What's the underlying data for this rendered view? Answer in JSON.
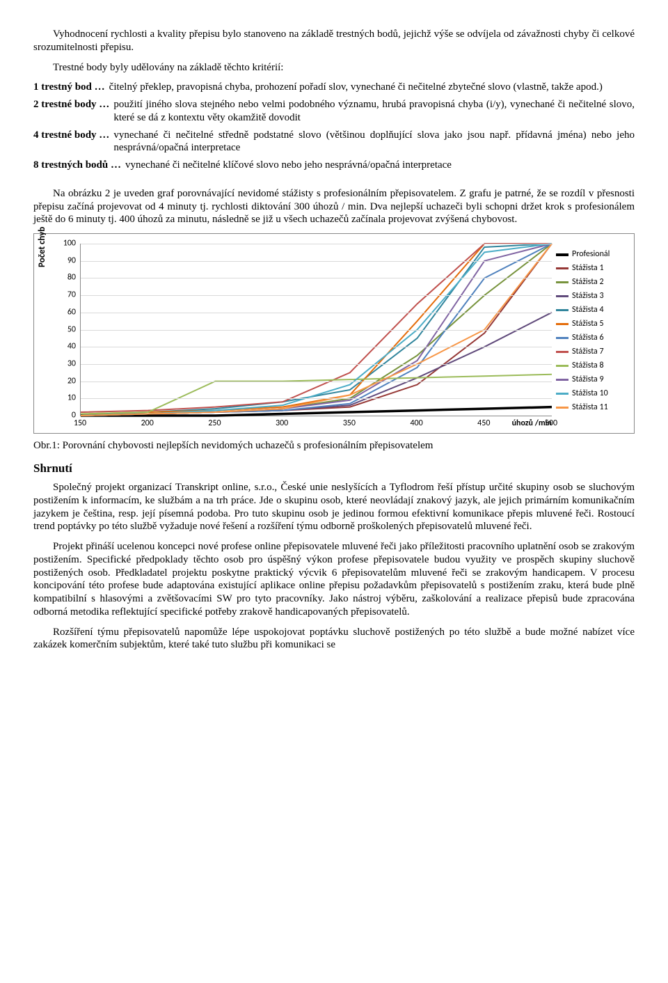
{
  "para1": "Vyhodnocení rychlosti a kvality přepisu bylo stanoveno na základě trestných bodů, jejichž výše se odvíjela od závažnosti chyby či celkové srozumitelnosti přepisu.",
  "para2": "Trestné body byly udělovány na základě těchto kritérií:",
  "criteria": [
    {
      "label": "1 trestný bod …",
      "text": "čitelný překlep, pravopisná chyba, prohození pořadí slov, vynechané či nečitelné zbytečné slovo (vlastně, takže apod.)"
    },
    {
      "label": "2 trestné body …",
      "text": "použití jiného slova stejného nebo velmi podobného významu, hrubá pravopisná chyba (i/y), vynechané či nečitelné slovo, které se dá z kontextu věty okamžitě dovodit"
    },
    {
      "label": "4 trestné body …",
      "text": "vynechané či nečitelné středně podstatné slovo (většinou doplňující slova jako jsou např. přídavná jména) nebo jeho nesprávná/opačná interpretace"
    },
    {
      "label": "8 trestných bodů …",
      "text": "vynechané či nečitelné klíčové slovo nebo jeho nesprávná/opačná interpretace"
    }
  ],
  "para3": "Na obrázku 2 je uveden graf porovnávající nevidomé stážisty s profesionálním přepisovatelem. Z grafu je patrné, že se rozdíl v přesnosti přepisu začíná projevovat od 4 minuty tj. rychlosti diktování 300 úhozů / min. Dva nejlepší uchazeči byli schopni držet krok s profesionálem ještě do 6 minuty tj. 400 úhozů za minutu, následně se již u všech uchazečů začínala projevovat zvýšená chybovost.",
  "chart": {
    "ylabel": "Počet chyb",
    "xlabel_extra": "úhozů /min",
    "ylim": [
      0,
      100
    ],
    "ytick_step": 10,
    "xticks": [
      150,
      200,
      250,
      300,
      350,
      400,
      450,
      500
    ],
    "grid_color": "#d9d9d9",
    "series": [
      {
        "name": "Profesionál",
        "color": "#000000",
        "width": 3.5,
        "data": [
          0,
          0,
          0,
          1,
          2,
          3,
          4,
          5
        ]
      },
      {
        "name": "Stážista 1",
        "color": "#953735",
        "width": 2,
        "data": [
          0,
          1,
          2,
          3,
          5,
          18,
          48,
          100
        ]
      },
      {
        "name": "Stážista 2",
        "color": "#77933c",
        "width": 2,
        "data": [
          0,
          1,
          2,
          4,
          10,
          35,
          70,
          100
        ]
      },
      {
        "name": "Stážista 3",
        "color": "#604a7b",
        "width": 2,
        "data": [
          0,
          1,
          2,
          3,
          6,
          22,
          40,
          60
        ]
      },
      {
        "name": "Stážista 4",
        "color": "#31859c",
        "width": 2,
        "data": [
          0,
          2,
          4,
          8,
          15,
          45,
          98,
          100
        ]
      },
      {
        "name": "Stážista 5",
        "color": "#e46c0a",
        "width": 2,
        "data": [
          1,
          2,
          3,
          5,
          12,
          55,
          100,
          100
        ]
      },
      {
        "name": "Stážista 6",
        "color": "#4f81bd",
        "width": 2,
        "data": [
          0,
          1,
          2,
          3,
          7,
          28,
          80,
          100
        ]
      },
      {
        "name": "Stážista 7",
        "color": "#c0504d",
        "width": 2,
        "data": [
          2,
          3,
          5,
          8,
          25,
          65,
          100,
          100
        ]
      },
      {
        "name": "Stážista 8",
        "color": "#9bbb59",
        "width": 2,
        "data": [
          1,
          2,
          20,
          20,
          21,
          22,
          23,
          24
        ]
      },
      {
        "name": "Stážista 9",
        "color": "#8064a2",
        "width": 2,
        "data": [
          0,
          1,
          2,
          4,
          9,
          32,
          90,
          100
        ]
      },
      {
        "name": "Stážista 10",
        "color": "#4bacc6",
        "width": 2,
        "data": [
          0,
          1,
          3,
          6,
          18,
          50,
          95,
          100
        ]
      },
      {
        "name": "Stážista 11",
        "color": "#f79646",
        "width": 2,
        "data": [
          0,
          1,
          2,
          4,
          12,
          30,
          50,
          100
        ]
      }
    ]
  },
  "caption": "Obr.1: Porovnání chybovosti nejlepších nevidomých uchazečů s profesionálním přepisovatelem",
  "section_heading": "Shrnutí",
  "para4": "Společný projekt organizací Transkript online, s.r.o., České unie neslyšících a Tyflodrom řeší přístup určité skupiny osob se sluchovým postižením k informacím, ke službám a na trh práce. Jde o skupinu osob, které neovládají znakový jazyk, ale jejich primárním komunikačním jazykem je čeština, resp. její písemná podoba. Pro tuto skupinu osob je jedinou formou efektivní komunikace přepis mluvené řeči. Rostoucí trend poptávky po této službě vyžaduje nové řešení a rozšíření týmu odborně proškolených přepisovatelů mluvené řeči.",
  "para5": "Projekt přináší ucelenou koncepci nové profese online přepisovatele mluvené řeči jako příležitosti pracovního uplatnění osob se zrakovým postižením. Specifické předpoklady těchto osob pro úspěšný výkon profese přepisovatele budou využity ve prospěch skupiny sluchově postižených osob. Předkladatel projektu poskytne praktický výcvik 6 přepisovatelům mluvené řeči se zrakovým handicapem. V procesu koncipování této profese bude adaptována existující aplikace online přepisu požadavkům přepisovatelů s postižením zraku, která bude plně kompatibilní s hlasovými a zvětšovacími SW pro tyto pracovníky. Jako nástroj výběru, zaškolování a realizace přepisů bude zpracována odborná metodika reflektující specifické potřeby zrakově handicapovaných přepisovatelů.",
  "para6": "Rozšíření týmu přepisovatelů napomůže lépe uspokojovat poptávku sluchově postižených po této službě a bude možné nabízet více zakázek komerčním subjektům, které také tuto službu při komunikaci se"
}
